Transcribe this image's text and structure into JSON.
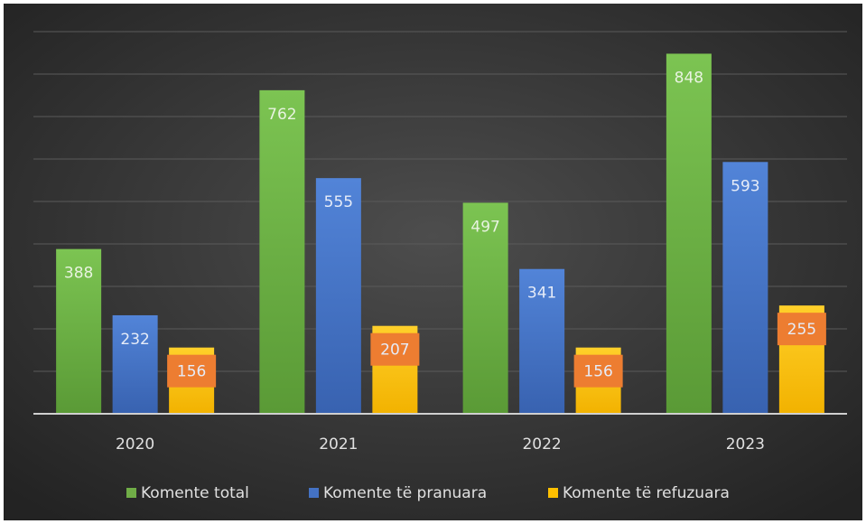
{
  "chart_data": {
    "type": "bar",
    "categories": [
      "2020",
      "2021",
      "2022",
      "2023"
    ],
    "series": [
      {
        "name": "Komente total",
        "color": "#70ad47",
        "values": [
          388,
          762,
          497,
          848
        ]
      },
      {
        "name": "Komente të pranuara",
        "color": "#4472c4",
        "values": [
          232,
          555,
          341,
          593
        ]
      },
      {
        "name": "Komente të refuzuara",
        "color": "#ffc000",
        "values": [
          156,
          207,
          156,
          255
        ]
      }
    ],
    "ylim": [
      0,
      900
    ],
    "yticks": [
      0,
      100,
      200,
      300,
      400,
      500,
      600,
      700,
      800,
      900
    ],
    "grid": true,
    "legend": "bottom"
  }
}
